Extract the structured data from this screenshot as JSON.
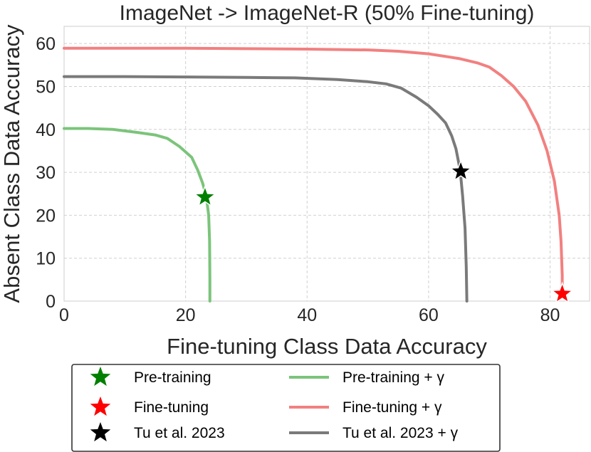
{
  "chart_data": {
    "type": "line",
    "title": "ImageNet -> ImageNet-R (50% Fine-tuning)",
    "xlabel": "Fine-tuning Class Data Accuracy",
    "ylabel": "Absent Class Data Accuracy",
    "xlim": [
      0,
      86.5
    ],
    "ylim": [
      0,
      64
    ],
    "xticks": [
      0,
      20,
      40,
      60,
      80
    ],
    "yticks": [
      0,
      10,
      20,
      30,
      40,
      50,
      60
    ],
    "grid": true,
    "legend_position": "bottom",
    "series": [
      {
        "name": "Pre-training + γ",
        "kind": "line",
        "color": "#7bc47b",
        "x": [
          0,
          4,
          8,
          12,
          15,
          17,
          19,
          21,
          22,
          22.8,
          23.4,
          23.8,
          23.95,
          24.0,
          24.0
        ],
        "y": [
          40.2,
          40.2,
          40.0,
          39.3,
          38.7,
          37.9,
          36.0,
          33.5,
          30.5,
          27.5,
          24.5,
          20.0,
          14.0,
          5.0,
          0
        ]
      },
      {
        "name": "Fine-tuning + γ",
        "kind": "line",
        "color": "#f28080",
        "x": [
          0,
          20,
          40,
          50,
          55,
          60,
          65,
          68,
          70,
          72,
          74,
          76,
          78,
          79.5,
          80.7,
          81.5,
          81.8,
          82.0,
          82.0
        ],
        "y": [
          58.9,
          58.9,
          58.7,
          58.5,
          58.2,
          57.6,
          56.5,
          55.5,
          54.5,
          52.5,
          50.0,
          46.5,
          41.0,
          35.0,
          28.0,
          20.0,
          14.0,
          6.0,
          2.0
        ]
      },
      {
        "name": "Tu et al. 2023 + γ",
        "kind": "line",
        "color": "#7a7a7a",
        "x": [
          0,
          10,
          20,
          30,
          38,
          45,
          50,
          53,
          55.5,
          58,
          60,
          61.5,
          62.8,
          63.8,
          64.5,
          65.2,
          65.6,
          66.0,
          66.2,
          66.3
        ],
        "y": [
          52.3,
          52.3,
          52.2,
          52.1,
          52.0,
          51.6,
          51.1,
          50.6,
          49.6,
          47.5,
          45.5,
          43.5,
          41.5,
          38.5,
          35.5,
          30.5,
          24.5,
          17.0,
          8.0,
          0
        ]
      },
      {
        "name": "Pre-training",
        "kind": "star",
        "color": "#008000",
        "x": 23.2,
        "y": 24.2
      },
      {
        "name": "Fine-tuning",
        "kind": "star",
        "color": "#ff0000",
        "x": 82.0,
        "y": 1.7
      },
      {
        "name": "Tu et al. 2023",
        "kind": "star",
        "color": "#000000",
        "x": 65.3,
        "y": 30.2
      }
    ]
  },
  "legend": {
    "col1": [
      {
        "label": "Pre-training",
        "color": "#008000"
      },
      {
        "label": "Fine-tuning",
        "color": "#ff0000"
      },
      {
        "label": "Tu et al. 2023",
        "color": "#000000"
      }
    ],
    "col2": [
      {
        "label": "Pre-training + γ",
        "color": "#7bc47b"
      },
      {
        "label": "Fine-tuning + γ",
        "color": "#f28080"
      },
      {
        "label": "Tu et al. 2023 + γ",
        "color": "#7a7a7a"
      }
    ]
  }
}
